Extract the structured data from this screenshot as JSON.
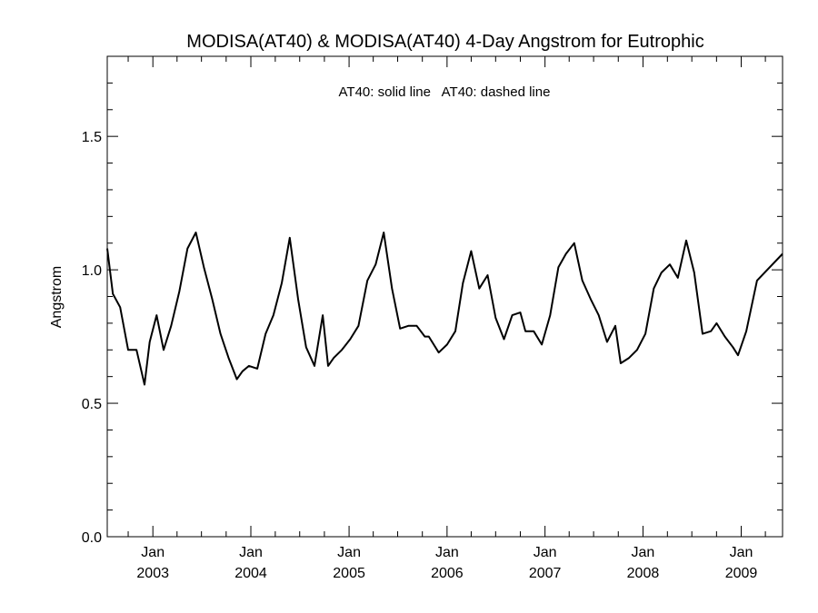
{
  "chart_data": {
    "type": "line",
    "title": "MODISA(AT40) & MODISA(AT40) 4-Day Angstrom for Eutrophic",
    "legend_text": "AT40: solid line   AT40: dashed line",
    "ylabel": "Angstrom",
    "xlabel": "",
    "ylim": [
      0.0,
      1.8
    ],
    "xlim": [
      "2002-07-15",
      "2009-06-04"
    ],
    "y_ticks": [
      "0.0",
      "0.5",
      "1.0",
      "1.5"
    ],
    "x_ticks": [
      {
        "month": "Jan",
        "year": "2003",
        "date": "2003-01-01"
      },
      {
        "month": "Jan",
        "year": "2004",
        "date": "2004-01-01"
      },
      {
        "month": "Jan",
        "year": "2005",
        "date": "2005-01-01"
      },
      {
        "month": "Jan",
        "year": "2006",
        "date": "2006-01-01"
      },
      {
        "month": "Jan",
        "year": "2007",
        "date": "2007-01-01"
      },
      {
        "month": "Jan",
        "year": "2008",
        "date": "2008-01-01"
      },
      {
        "month": "Jan",
        "year": "2009",
        "date": "2009-01-01"
      }
    ],
    "grid": false,
    "series": [
      {
        "name": "AT40",
        "style": "solid",
        "color": "#000000",
        "points": [
          [
            "2002-07-15",
            1.08
          ],
          [
            "2002-08-05",
            0.91
          ],
          [
            "2002-09-01",
            0.86
          ],
          [
            "2002-10-01",
            0.7
          ],
          [
            "2002-11-01",
            0.7
          ],
          [
            "2002-12-01",
            0.57
          ],
          [
            "2002-12-20",
            0.73
          ],
          [
            "2003-01-15",
            0.83
          ],
          [
            "2003-02-10",
            0.7
          ],
          [
            "2003-03-10",
            0.79
          ],
          [
            "2003-04-10",
            0.92
          ],
          [
            "2003-05-10",
            1.08
          ],
          [
            "2003-06-10",
            1.14
          ],
          [
            "2003-07-10",
            1.01
          ],
          [
            "2003-08-10",
            0.89
          ],
          [
            "2003-09-10",
            0.76
          ],
          [
            "2003-10-10",
            0.67
          ],
          [
            "2003-11-10",
            0.59
          ],
          [
            "2003-12-01",
            0.62
          ],
          [
            "2003-12-25",
            0.64
          ],
          [
            "2004-01-25",
            0.63
          ],
          [
            "2004-02-25",
            0.76
          ],
          [
            "2004-03-25",
            0.83
          ],
          [
            "2004-04-25",
            0.95
          ],
          [
            "2004-05-25",
            1.12
          ],
          [
            "2004-06-25",
            0.89
          ],
          [
            "2004-07-25",
            0.71
          ],
          [
            "2004-08-25",
            0.64
          ],
          [
            "2004-09-25",
            0.83
          ],
          [
            "2004-10-15",
            0.64
          ],
          [
            "2004-11-05",
            0.67
          ],
          [
            "2004-12-05",
            0.7
          ],
          [
            "2005-01-05",
            0.74
          ],
          [
            "2005-02-05",
            0.79
          ],
          [
            "2005-03-10",
            0.96
          ],
          [
            "2005-04-10",
            1.02
          ],
          [
            "2005-05-10",
            1.14
          ],
          [
            "2005-06-10",
            0.93
          ],
          [
            "2005-07-10",
            0.78
          ],
          [
            "2005-08-10",
            0.79
          ],
          [
            "2005-09-10",
            0.79
          ],
          [
            "2005-10-10",
            0.75
          ],
          [
            "2005-10-25",
            0.75
          ],
          [
            "2005-12-01",
            0.69
          ],
          [
            "2006-01-01",
            0.72
          ],
          [
            "2006-02-01",
            0.77
          ],
          [
            "2006-03-01",
            0.95
          ],
          [
            "2006-04-01",
            1.07
          ],
          [
            "2006-05-01",
            0.93
          ],
          [
            "2006-06-01",
            0.98
          ],
          [
            "2006-07-01",
            0.82
          ],
          [
            "2006-08-01",
            0.74
          ],
          [
            "2006-09-01",
            0.83
          ],
          [
            "2006-10-01",
            0.84
          ],
          [
            "2006-10-20",
            0.77
          ],
          [
            "2006-11-20",
            0.77
          ],
          [
            "2006-12-20",
            0.72
          ],
          [
            "2007-01-20",
            0.83
          ],
          [
            "2007-02-20",
            1.01
          ],
          [
            "2007-03-20",
            1.06
          ],
          [
            "2007-04-20",
            1.1
          ],
          [
            "2007-05-20",
            0.96
          ],
          [
            "2007-06-20",
            0.89
          ],
          [
            "2007-07-20",
            0.83
          ],
          [
            "2007-08-20",
            0.73
          ],
          [
            "2007-09-20",
            0.79
          ],
          [
            "2007-10-10",
            0.65
          ],
          [
            "2007-11-10",
            0.67
          ],
          [
            "2007-12-10",
            0.7
          ],
          [
            "2008-01-10",
            0.76
          ],
          [
            "2008-02-10",
            0.93
          ],
          [
            "2008-03-10",
            0.99
          ],
          [
            "2008-04-10",
            1.02
          ],
          [
            "2008-05-10",
            0.97
          ],
          [
            "2008-06-10",
            1.11
          ],
          [
            "2008-07-10",
            0.99
          ],
          [
            "2008-08-10",
            0.76
          ],
          [
            "2008-09-10",
            0.77
          ],
          [
            "2008-10-01",
            0.8
          ],
          [
            "2008-11-01",
            0.75
          ],
          [
            "2008-12-01",
            0.71
          ],
          [
            "2008-12-20",
            0.68
          ],
          [
            "2009-01-20",
            0.77
          ],
          [
            "2009-03-01",
            0.96
          ],
          [
            "2009-06-04",
            1.06
          ]
        ]
      }
    ]
  }
}
